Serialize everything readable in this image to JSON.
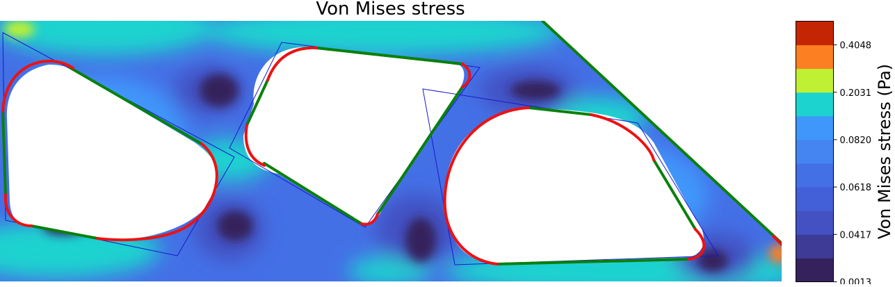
{
  "chart_data": {
    "type": "heatmap",
    "title": "Von Mises stress",
    "colorbar": {
      "label": "Von Mises stress (Pa)",
      "tick_labels": [
        "0.0013",
        "0.0417",
        "0.0618",
        "0.0820",
        "0.2031",
        "0.4048"
      ],
      "levels": [
        0.0013,
        0.0215,
        0.0417,
        0.0517,
        0.0618,
        0.0719,
        0.082,
        0.1425,
        0.2031,
        0.304,
        0.4048,
        0.5057
      ],
      "colors": [
        "#35225c",
        "#3d3b96",
        "#4351c2",
        "#4460d8",
        "#4470e6",
        "#4485f2",
        "#3f96fb",
        "#1dd3cf",
        "#c0f033",
        "#fc8021",
        "#c42603"
      ]
    },
    "curve_colors": {
      "arc": "#ee1111",
      "segment": "#0a800a",
      "outline": "#1818cc"
    }
  }
}
